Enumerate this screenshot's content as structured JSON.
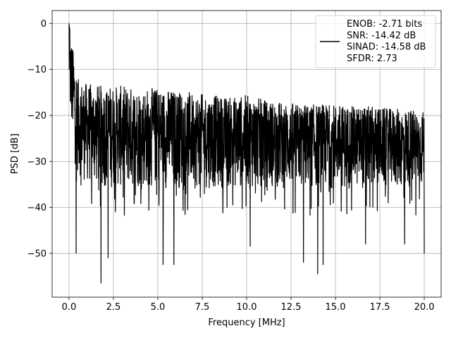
{
  "chart_data": {
    "type": "line",
    "xlabel": "Frequency [MHz]",
    "ylabel": "PSD [dB]",
    "xlim": [
      -0.95,
      20.95
    ],
    "ylim": [
      -59.5,
      2.8
    ],
    "x_ticks": [
      0.0,
      2.5,
      5.0,
      7.5,
      10.0,
      12.5,
      15.0,
      17.5,
      20.0
    ],
    "x_tick_labels": [
      "0.0",
      "2.5",
      "5.0",
      "7.5",
      "10.0",
      "12.5",
      "15.0",
      "17.5",
      "20.0"
    ],
    "y_ticks": [
      0,
      -10,
      -20,
      -30,
      -40,
      -50
    ],
    "y_tick_labels": [
      "0",
      "−10",
      "−20",
      "−30",
      "−40",
      "−50"
    ],
    "grid": true,
    "legend_position": "top-right",
    "series": [
      {
        "name": "ENOB: -2.71 bits\nSNR: -14.42 dB\nSINAD: -14.58 dB\nSFDR: 2.73",
        "legend_lines": [
          "ENOB: -2.71 bits",
          "SNR: -14.42 dB",
          "SINAD: -14.58 dB",
          "SFDR: 2.73"
        ],
        "color": "#000000",
        "description_envelope": {
          "x": [
            0.0,
            0.5,
            1.0,
            2.0,
            3.0,
            4.0,
            5.0,
            6.0,
            7.0,
            8.0,
            9.0,
            10.0,
            11.0,
            12.0,
            13.0,
            14.0,
            15.0,
            16.0,
            17.0,
            18.0,
            19.0,
            20.0
          ],
          "upper": [
            0.0,
            -12.0,
            -13.0,
            -13.5,
            -13.5,
            -14.0,
            -14.0,
            -14.5,
            -15.0,
            -15.5,
            -16.0,
            -15.5,
            -16.5,
            -17.0,
            -17.5,
            -17.5,
            -17.5,
            -18.0,
            -18.0,
            -18.5,
            -18.5,
            -19.0
          ],
          "lower": [
            -20.0,
            -33.0,
            -35.0,
            -36.0,
            -36.0,
            -36.0,
            -36.0,
            -36.0,
            -36.0,
            -36.0,
            -36.0,
            -36.0,
            -36.0,
            -36.0,
            -36.0,
            -36.0,
            -36.0,
            -36.0,
            -36.0,
            -36.0,
            -36.0,
            -36.0
          ]
        },
        "deep_dips": [
          {
            "x": 0.4,
            "y": -50.0
          },
          {
            "x": 1.8,
            "y": -56.5
          },
          {
            "x": 2.2,
            "y": -51.0
          },
          {
            "x": 5.3,
            "y": -52.5
          },
          {
            "x": 5.9,
            "y": -52.5
          },
          {
            "x": 10.2,
            "y": -48.5
          },
          {
            "x": 13.2,
            "y": -52.0
          },
          {
            "x": 14.0,
            "y": -54.5
          },
          {
            "x": 14.3,
            "y": -52.5
          },
          {
            "x": 16.7,
            "y": -48.0
          },
          {
            "x": 18.9,
            "y": -48.0
          },
          {
            "x": 20.0,
            "y": -50.0
          }
        ]
      }
    ]
  }
}
